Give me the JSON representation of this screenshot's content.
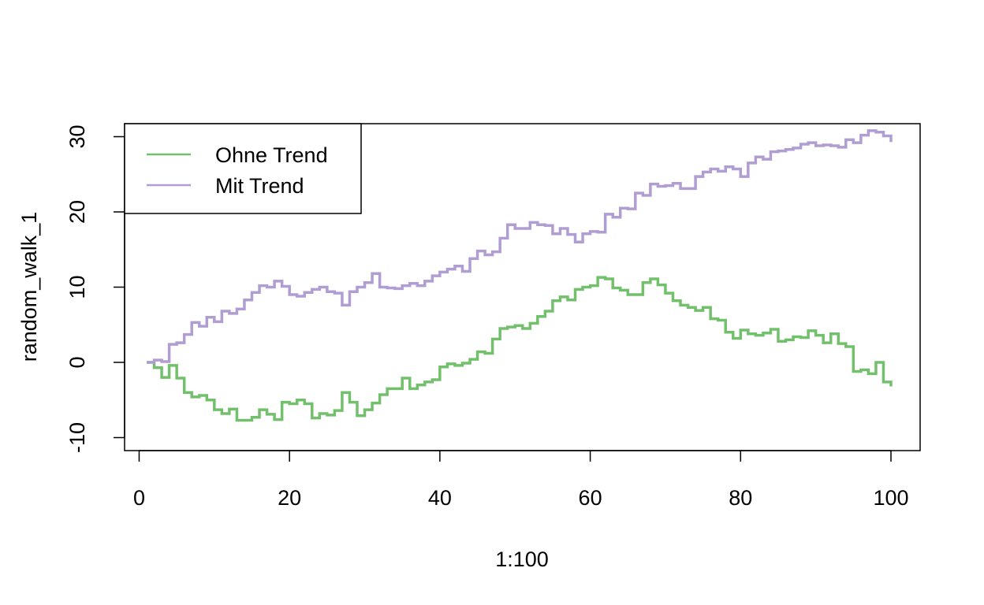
{
  "chart_data": {
    "type": "line",
    "step": true,
    "xlabel": "1:100",
    "ylabel": "random_walk_1",
    "xlim": [
      1,
      100
    ],
    "ylim": [
      -11.5,
      30
    ],
    "x_ticks": [
      0,
      20,
      40,
      60,
      80,
      100
    ],
    "y_ticks": [
      -10,
      0,
      10,
      20,
      30
    ],
    "grid": false,
    "legend_position": "top-left",
    "x": [
      1,
      2,
      3,
      4,
      5,
      6,
      7,
      8,
      9,
      10,
      11,
      12,
      13,
      14,
      15,
      16,
      17,
      18,
      19,
      20,
      21,
      22,
      23,
      24,
      25,
      26,
      27,
      28,
      29,
      30,
      31,
      32,
      33,
      34,
      35,
      36,
      37,
      38,
      39,
      40,
      41,
      42,
      43,
      44,
      45,
      46,
      47,
      48,
      49,
      50,
      51,
      52,
      53,
      54,
      55,
      56,
      57,
      58,
      59,
      60,
      61,
      62,
      63,
      64,
      65,
      66,
      67,
      68,
      69,
      70,
      71,
      72,
      73,
      74,
      75,
      76,
      77,
      78,
      79,
      80,
      81,
      82,
      83,
      84,
      85,
      86,
      87,
      88,
      89,
      90,
      91,
      92,
      93,
      94,
      95,
      96,
      97,
      98,
      99,
      100
    ],
    "series": [
      {
        "name": "Ohne Trend",
        "color": "#73c06c",
        "values": [
          0,
          -0.7,
          -2,
          -0.4,
          -2.1,
          -4,
          -4.6,
          -4.4,
          -5,
          -6.3,
          -6.8,
          -6.2,
          -7.7,
          -7.7,
          -7.3,
          -6.3,
          -6.9,
          -7.6,
          -5.3,
          -5.5,
          -5,
          -5.5,
          -7.4,
          -6.8,
          -7,
          -6.4,
          -4,
          -5.3,
          -7.1,
          -6.3,
          -5.4,
          -4.3,
          -3.5,
          -3.5,
          -2.1,
          -3.5,
          -3,
          -2.6,
          -2.3,
          -0.6,
          -0.2,
          -0.4,
          -0.1,
          0.4,
          1.4,
          1.2,
          3.1,
          4.5,
          4.7,
          4.9,
          4.5,
          5.2,
          6.1,
          6.8,
          8.2,
          8.7,
          8.3,
          9.7,
          10,
          10.2,
          11.3,
          11.1,
          9.9,
          9.6,
          9,
          9,
          10.6,
          11.1,
          10.3,
          9.2,
          8.2,
          7.6,
          7.3,
          6.9,
          7.3,
          5.8,
          5.6,
          4,
          3.2,
          4.3,
          3.8,
          3.6,
          3.9,
          4.4,
          2.8,
          3,
          3.4,
          3.3,
          4.2,
          3.6,
          2.6,
          3.8,
          2.5,
          2.1,
          -1.2,
          -1,
          -1.5,
          0,
          -2.6,
          -3.2
        ]
      },
      {
        "name": "Mit Trend",
        "color": "#b09dd2",
        "values": [
          0,
          0.3,
          0.1,
          2.4,
          2.6,
          3.7,
          5.3,
          4.8,
          6,
          5.4,
          6.8,
          6.5,
          7.1,
          8.3,
          9.3,
          10.2,
          10,
          10.8,
          10.1,
          9,
          8.8,
          9.3,
          9.7,
          10,
          9.4,
          9.2,
          7.6,
          9.4,
          10,
          10.6,
          11.8,
          10,
          9.9,
          9.8,
          10.2,
          10.5,
          10.2,
          10.8,
          11.5,
          12,
          12.4,
          12.8,
          12.1,
          13.8,
          14.8,
          14.3,
          14.7,
          16.5,
          18.3,
          17.8,
          17.8,
          18.6,
          18.3,
          18.2,
          17.1,
          17.8,
          17,
          16,
          17.1,
          17.4,
          17.3,
          19.7,
          19.3,
          20.5,
          20.4,
          22.5,
          22.2,
          23.7,
          23.4,
          23.5,
          23.8,
          23.1,
          23.1,
          24.7,
          25.3,
          25.7,
          25.4,
          26,
          25.7,
          24.7,
          26.5,
          27.3,
          27,
          28,
          28.1,
          28.3,
          28.5,
          29,
          29.2,
          28.8,
          28.9,
          28.8,
          28.6,
          29.6,
          29.2,
          30.2,
          30.8,
          30.6,
          30.1,
          29.3
        ]
      }
    ]
  }
}
